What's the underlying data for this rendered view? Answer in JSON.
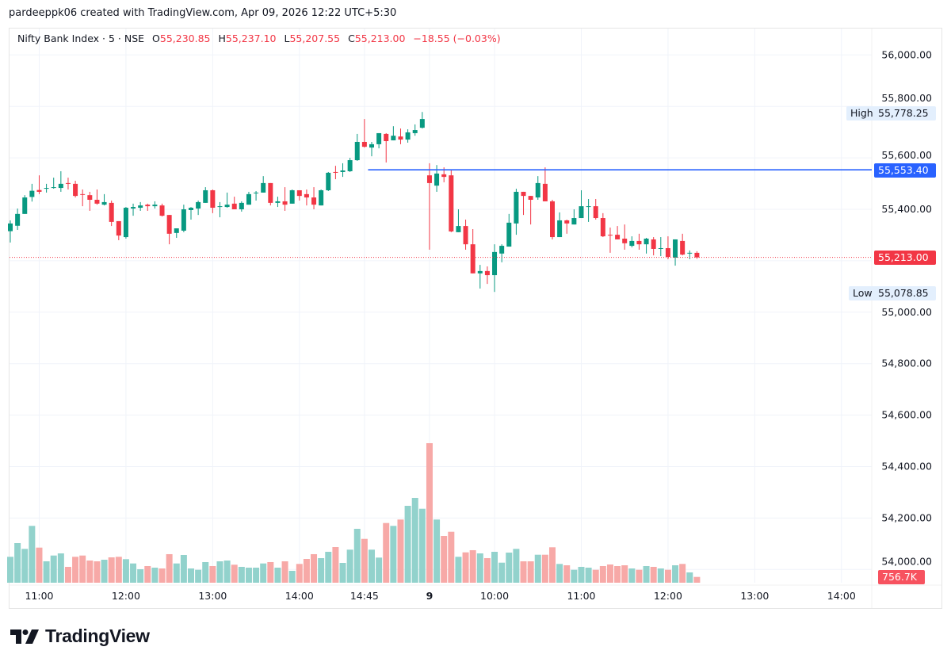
{
  "credit": "pardeeppk06 created with TradingView.com, Apr 09, 2026 12:22 UTC+5:30",
  "legend": {
    "symbol": "Nifty Bank Index · 5 · NSE",
    "open_label": "O",
    "open": "55,230.85",
    "high_label": "H",
    "high": "55,237.10",
    "low_label": "L",
    "low": "55,207.55",
    "close_label": "C",
    "close": "55,213.00",
    "change": "−18.55 (−0.03%)"
  },
  "badges": {
    "high_label": "High",
    "high_value": "55,778.25",
    "line_value": "55,553.40",
    "last_value": "55,213.00",
    "low_label": "Low",
    "low_value": "55,078.85",
    "volume_value": "756.7K"
  },
  "logo": {
    "text": "TradingView"
  },
  "colors": {
    "up": "#089981",
    "down": "#F23645",
    "up_volume": "#92d2cc",
    "down_volume": "#f7a9a7",
    "hline": "#2962FF",
    "grid": "#f0f3fa"
  },
  "chart_data": {
    "type": "candlestick",
    "title": "Nifty Bank Index · 5 · NSE",
    "interval_minutes": 5,
    "ylim": [
      54000,
      56000
    ],
    "grid": true,
    "y_tick_labels": [
      "56,000.00",
      "55,800.00",
      "55,600.00",
      "55,400.00",
      "55,000.00",
      "54,800.00",
      "54,600.00",
      "54,400.00",
      "54,200.00",
      "54,000.00"
    ],
    "x_tick_labels": [
      "11:00",
      "12:00",
      "13:00",
      "14:00",
      "14:45",
      "9",
      "10:00",
      "11:00",
      "12:00",
      "13:00",
      "14:00"
    ],
    "horizontal_line": 55553.4,
    "last_price": 55213.0,
    "session_high": 55778.25,
    "session_low": 55078.85,
    "ohlc": [
      [
        55315,
        55357,
        55271,
        55345
      ],
      [
        55336,
        55403,
        55320,
        55382
      ],
      [
        55382,
        55455,
        55382,
        55446
      ],
      [
        55448,
        55499,
        55430,
        55472
      ],
      [
        55475,
        55532,
        55459,
        55468
      ],
      [
        55480,
        55499,
        55465,
        55483
      ],
      [
        55483,
        55523,
        55480,
        55486
      ],
      [
        55483,
        55548,
        55468,
        55499
      ],
      [
        55502,
        55523,
        55477,
        55499
      ],
      [
        55499,
        55511,
        55446,
        55452
      ],
      [
        55459,
        55477,
        55412,
        55457
      ],
      [
        55455,
        55468,
        55394,
        55437
      ],
      [
        55437,
        55477,
        55418,
        55422
      ],
      [
        55418,
        55459,
        55415,
        55428
      ],
      [
        55425,
        55434,
        55335,
        55351
      ],
      [
        55354,
        55354,
        55280,
        55298
      ],
      [
        55292,
        55409,
        55286,
        55406
      ],
      [
        55403,
        55422,
        55375,
        55409
      ],
      [
        55406,
        55428,
        55394,
        55415
      ],
      [
        55418,
        55422,
        55394,
        55412
      ],
      [
        55412,
        55431,
        55403,
        55418
      ],
      [
        55415,
        55422,
        55372,
        55375
      ],
      [
        55378,
        55378,
        55264,
        55305
      ],
      [
        55308,
        55326,
        55289,
        55326
      ],
      [
        55317,
        55418,
        55311,
        55400
      ],
      [
        55397,
        55409,
        55360,
        55406
      ],
      [
        55403,
        55434,
        55378,
        55428
      ],
      [
        55425,
        55486,
        55425,
        55474
      ],
      [
        55474,
        55477,
        55385,
        55406
      ],
      [
        55409,
        55428,
        55369,
        55412
      ],
      [
        55409,
        55465,
        55406,
        55418
      ],
      [
        55422,
        55449,
        55400,
        55400
      ],
      [
        55400,
        55431,
        55391,
        55425
      ],
      [
        55418,
        55468,
        55418,
        55459
      ],
      [
        55462,
        55471,
        55434,
        55465
      ],
      [
        55465,
        55529,
        55465,
        55502
      ],
      [
        55502,
        55502,
        55415,
        55425
      ],
      [
        55425,
        55449,
        55409,
        55431
      ],
      [
        55431,
        55486,
        55394,
        55418
      ],
      [
        55422,
        55477,
        55422,
        55474
      ],
      [
        55474,
        55474,
        55434,
        55452
      ],
      [
        55459,
        55477,
        55415,
        55446
      ],
      [
        55446,
        55486,
        55400,
        55418
      ],
      [
        55415,
        55477,
        55415,
        55474
      ],
      [
        55474,
        55545,
        55471,
        55542
      ],
      [
        55545,
        55569,
        55517,
        55542
      ],
      [
        55545,
        55579,
        55526,
        55551
      ],
      [
        55548,
        55600,
        55545,
        55591
      ],
      [
        55591,
        55693,
        55588,
        55662
      ],
      [
        55662,
        55751,
        55640,
        55643
      ],
      [
        55640,
        55662,
        55606,
        55653
      ],
      [
        55653,
        55696,
        55637,
        55696
      ],
      [
        55693,
        55696,
        55582,
        55665
      ],
      [
        55668,
        55723,
        55668,
        55686
      ],
      [
        55683,
        55714,
        55653,
        55671
      ],
      [
        55671,
        55711,
        55659,
        55699
      ],
      [
        55696,
        55730,
        55686,
        55708
      ],
      [
        55717,
        55778.25,
        55714,
        55751
      ],
      [
        55532,
        55579,
        55243,
        55502
      ],
      [
        55492,
        55572,
        55468,
        55539
      ],
      [
        55536,
        55563,
        55505,
        55526
      ],
      [
        55532,
        55554,
        55311,
        55314
      ],
      [
        55311,
        55400,
        55311,
        55335
      ],
      [
        55335,
        55360,
        55243,
        55264
      ],
      [
        55264,
        55323,
        55151,
        55151
      ],
      [
        55151,
        55184,
        55092,
        55160
      ],
      [
        55160,
        55178,
        55110,
        55144
      ],
      [
        55144,
        55264,
        55078.85,
        55234
      ],
      [
        55228,
        55264,
        55194,
        55258
      ],
      [
        55255,
        55382,
        55255,
        55348
      ],
      [
        55345,
        55480,
        55301,
        55468
      ],
      [
        55468,
        55468,
        55378,
        55452
      ],
      [
        55452,
        55452,
        55341,
        55437
      ],
      [
        55446,
        55529,
        55437,
        55502
      ],
      [
        55499,
        55563,
        55431,
        55431
      ],
      [
        55431,
        55437,
        55283,
        55292
      ],
      [
        55292,
        55388,
        55292,
        55357
      ],
      [
        55357,
        55360,
        55305,
        55345
      ],
      [
        55341,
        55400,
        55341,
        55366
      ],
      [
        55366,
        55474,
        55366,
        55412
      ],
      [
        55411,
        55440,
        55351,
        55412
      ],
      [
        55412,
        55440,
        55360,
        55366
      ],
      [
        55366,
        55385,
        55292,
        55295
      ],
      [
        55301,
        55329,
        55231,
        55300
      ],
      [
        55301,
        55335,
        55283,
        55283
      ],
      [
        55286,
        55341,
        55243,
        55268
      ],
      [
        55258,
        55295,
        55252,
        55277
      ],
      [
        55277,
        55305,
        55243,
        55264
      ],
      [
        55264,
        55289,
        55228,
        55286
      ],
      [
        55283,
        55292,
        55221,
        55246
      ],
      [
        55248,
        55292,
        55218,
        55249
      ],
      [
        55249,
        55295,
        55206,
        55215
      ],
      [
        55212,
        55283,
        55181,
        55283
      ],
      [
        55277,
        55305,
        55221,
        55224
      ],
      [
        55228,
        55240,
        55206,
        55231
      ],
      [
        55230.85,
        55237.1,
        55207.55,
        55213.0
      ]
    ],
    "volume": [
      3388000,
      5180000,
      4424000,
      7428000,
      4589000,
      2797000,
      3553000,
      3833000,
      2072000,
      3388000,
      3553000,
      2901000,
      2797000,
      3004000,
      3315000,
      3388000,
      3077000,
      2517000,
      1761000,
      2176000,
      1968000,
      1865000,
      3730000,
      2517000,
      3626000,
      1865000,
      1689000,
      2694000,
      2176000,
      2797000,
      2901000,
      2352000,
      2072000,
      1968000,
      1968000,
      2517000,
      2694000,
      1968000,
      2797000,
      1554000,
      2455000,
      3108000,
      3730000,
      3212000,
      4040000,
      4662000,
      2590000,
      4320000,
      7045000,
      5729000,
      4320000,
      3284000,
      7801000,
      7428000,
      8257000,
      10049000,
      11085000,
      9666000,
      18234000,
      8257000,
      6112000,
      6661000,
      3388000,
      3968000,
      4248000,
      3833000,
      3212000,
      4040000,
      2621000,
      3937000,
      4424000,
      2797000,
      2797000,
      3657000,
      3657000,
      4631000,
      2455000,
      2279000,
      1689000,
      2072000,
      1968000,
      1689000,
      2176000,
      2383000,
      2176000,
      2279000,
      1865000,
      1689000,
      2176000,
      2072000,
      1865000,
      1689000,
      2279000,
      2455000,
      1347000,
      756700
    ]
  }
}
